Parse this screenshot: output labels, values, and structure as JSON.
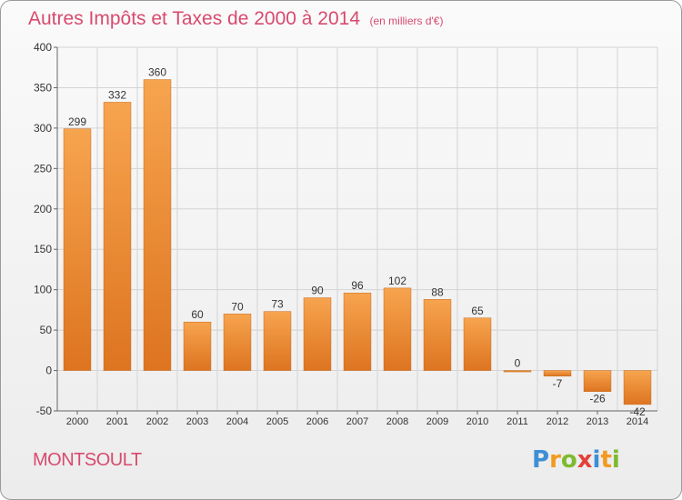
{
  "header": {
    "title": "Autres Impôts et Taxes de 2000 à 2014",
    "unit": "(en milliers d'€)"
  },
  "footer": {
    "commune": "MONTSOULT",
    "brand_letters": [
      "P",
      "r",
      "o",
      "x",
      "i",
      "t",
      "i"
    ],
    "brand_colors": [
      "#3d8fd6",
      "#f29a1f",
      "#7dbb2e",
      "#e5403a",
      "#3d8fd6",
      "#f29a1f",
      "#7dbb2e"
    ]
  },
  "chart_data": {
    "type": "bar",
    "title": "Autres Impôts et Taxes de 2000 à 2014",
    "xlabel": "",
    "ylabel": "",
    "categories": [
      "2000",
      "2001",
      "2002",
      "2003",
      "2004",
      "2005",
      "2006",
      "2007",
      "2008",
      "2009",
      "2010",
      "2011",
      "2012",
      "2013",
      "2014"
    ],
    "values": [
      299,
      332,
      360,
      60,
      70,
      73,
      90,
      96,
      102,
      88,
      65,
      0,
      -7,
      -26,
      -42
    ],
    "value_labels": [
      "299",
      "332",
      "360",
      "60",
      "70",
      "73",
      "90",
      "96",
      "102",
      "88",
      "65",
      "0",
      "-7",
      "-26",
      "-42"
    ],
    "ylim": [
      -50,
      400
    ],
    "yticks": [
      -50,
      0,
      50,
      100,
      150,
      200,
      250,
      300,
      350,
      400
    ],
    "grid": true,
    "legend": "none",
    "colors": {
      "bar_light": "#f7a44f",
      "bar_dark": "#dd7420",
      "grid": "#d4d4d4",
      "axis": "#666666",
      "text": "#333333"
    }
  }
}
